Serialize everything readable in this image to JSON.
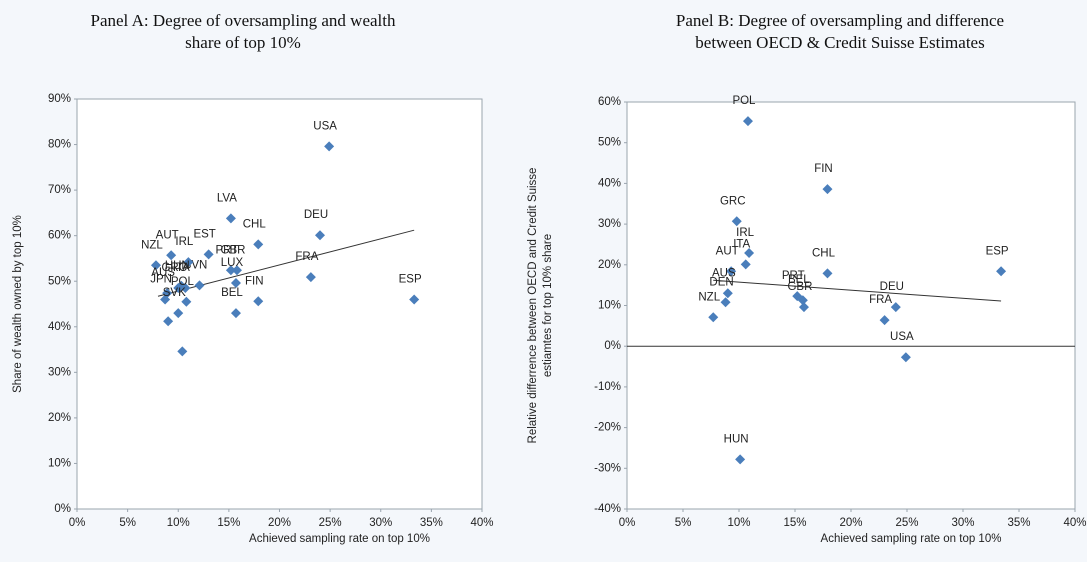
{
  "chart_data": [
    {
      "type": "scatter",
      "title": "Panel A: Degree of oversampling and wealth share of top 10%",
      "xlabel": "Achieved sampling rate on top 10%",
      "ylabel": [
        "Share of wealth owned by top 10%"
      ],
      "color": "#4a7ebb",
      "x": [
        24.9,
        33.3,
        24.0,
        23.1,
        17.9,
        15.2,
        17.9,
        15.7,
        15.2,
        15.8,
        15.7,
        13.0,
        12.1,
        11.0,
        9.3,
        7.8,
        10.3,
        8.9,
        8.7,
        10.0,
        10.7,
        10.8,
        10.0,
        9.0,
        10.4
      ],
      "values": [
        79.6,
        46.0,
        60.1,
        50.9,
        58.1,
        63.8,
        45.6,
        43.0,
        52.4,
        52.4,
        49.6,
        55.9,
        49.1,
        54.2,
        55.7,
        53.5,
        49.0,
        47.4,
        46.0,
        48.5,
        48.5,
        45.5,
        43.0,
        41.2,
        34.6
      ],
      "point_labels": [
        "USA",
        "ESP",
        "DEU",
        "FRA",
        "CHL",
        "LVA",
        "FIN",
        "BEL",
        "PRT",
        "GBR",
        "LUX",
        "EST",
        "SVN",
        "IRL",
        "AUT",
        "NZL",
        "HUN",
        "AUS",
        "JPN",
        "GRC",
        "ITA",
        "POL",
        "SVK",
        null,
        null
      ],
      "trendline": {
        "x": [
          8.0,
          33.3
        ],
        "values": [
          46.7,
          61.2
        ]
      },
      "xlim": [
        0,
        40
      ],
      "xticks": [
        {
          "value": 0,
          "label": "0%"
        },
        {
          "value": 5,
          "label": "5%"
        },
        {
          "value": 10,
          "label": "10%"
        },
        {
          "value": 15,
          "label": "15%"
        },
        {
          "value": 20,
          "label": "20%"
        },
        {
          "value": 25,
          "label": "25%"
        },
        {
          "value": 30,
          "label": "30%"
        },
        {
          "value": 35,
          "label": "35%"
        },
        {
          "value": 40,
          "label": "40%"
        }
      ],
      "ylim": [
        0,
        90
      ],
      "yticks": [
        {
          "value": 0,
          "label": "0%"
        },
        {
          "value": 10,
          "label": "10%"
        },
        {
          "value": 20,
          "label": "20%"
        },
        {
          "value": 30,
          "label": "30%"
        },
        {
          "value": 40,
          "label": "40%"
        },
        {
          "value": 50,
          "label": "50%"
        },
        {
          "value": 60,
          "label": "60%"
        },
        {
          "value": 70,
          "label": "70%"
        },
        {
          "value": 80,
          "label": "80%"
        },
        {
          "value": 90,
          "label": "90%"
        }
      ]
    },
    {
      "type": "scatter",
      "title": "Panel B: Degree of oversampling and difference between OECD & Credit Suisse Estimates",
      "xlabel": "Achieved sampling rate on top 10%",
      "ylabel": [
        "Relative differrence between OECD and Credit Suisse",
        "estiamtes for top 10% share"
      ],
      "color": "#4a7ebb",
      "x": [
        10.8,
        17.9,
        9.8,
        10.9,
        10.6,
        9.3,
        9.0,
        8.8,
        7.7,
        15.2,
        15.7,
        15.8,
        17.9,
        33.4,
        24.0,
        23.0,
        24.9,
        10.1
      ],
      "values": [
        55.3,
        38.6,
        30.7,
        22.9,
        20.1,
        18.4,
        13.0,
        10.8,
        7.1,
        12.3,
        11.3,
        9.6,
        17.9,
        18.4,
        9.6,
        6.4,
        -2.7,
        -27.8
      ],
      "point_labels": [
        "POL",
        "FIN",
        "GRC",
        "IRL",
        "ITA",
        "AUT",
        "AUS",
        "DEN",
        "NZL",
        "PRT",
        "BEL",
        "GBR",
        "CHL",
        "ESP",
        "DEU",
        "FRA",
        "USA",
        "HUN"
      ],
      "trendline": {
        "x": [
          7.7,
          33.4
        ],
        "values": [
          16.2,
          11.1
        ]
      },
      "zero_line": true,
      "xlim": [
        0,
        40
      ],
      "xticks": [
        {
          "value": 0,
          "label": "0%"
        },
        {
          "value": 5,
          "label": "5%"
        },
        {
          "value": 10,
          "label": "10%"
        },
        {
          "value": 15,
          "label": "15%"
        },
        {
          "value": 20,
          "label": "20%"
        },
        {
          "value": 25,
          "label": "25%"
        },
        {
          "value": 30,
          "label": "30%"
        },
        {
          "value": 35,
          "label": "35%"
        },
        {
          "value": 40,
          "label": "40%"
        }
      ],
      "ylim": [
        -40,
        60
      ],
      "yticks": [
        {
          "value": -40,
          "label": "-40%"
        },
        {
          "value": -30,
          "label": "-30%"
        },
        {
          "value": -20,
          "label": "-20%"
        },
        {
          "value": -10,
          "label": "-10%"
        },
        {
          "value": 0,
          "label": "0%"
        },
        {
          "value": 10,
          "label": "10%"
        },
        {
          "value": 20,
          "label": "20%"
        },
        {
          "value": 30,
          "label": "30%"
        },
        {
          "value": 40,
          "label": "40%"
        },
        {
          "value": 50,
          "label": "50%"
        },
        {
          "value": 60,
          "label": "60%"
        }
      ]
    }
  ]
}
